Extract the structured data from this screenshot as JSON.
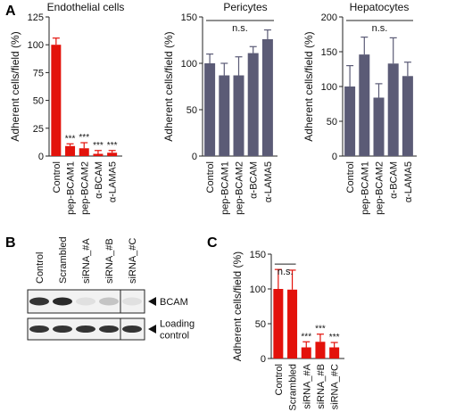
{
  "panel_labels": {
    "a": "A",
    "b": "B",
    "c": "C"
  },
  "colors": {
    "red": "#e3120b",
    "gray": "#5b5b76",
    "axis": "#222222"
  },
  "western_blot": {
    "lanes": [
      "Control",
      "Scrambled",
      "siRNA_#A",
      "siRNA_#B",
      "siRNA_#C"
    ],
    "bands": [
      {
        "label": "BCAM",
        "intensities": [
          0.85,
          0.9,
          0.05,
          0.18,
          0.05
        ]
      },
      {
        "label": "Loading\ncontrol",
        "intensities": [
          0.85,
          0.85,
          0.85,
          0.85,
          0.85
        ]
      }
    ]
  },
  "chart_data": [
    {
      "type": "bar",
      "title": "Endothelial cells",
      "ylabel": "Adherent cells/field (%)",
      "ylim": [
        0,
        125
      ],
      "yticks": [
        0,
        25,
        50,
        75,
        100,
        125
      ],
      "categories": [
        "Control",
        "pep-BCAM1",
        "pep-BCAM2",
        "α-BCAM",
        "α-LAMA5"
      ],
      "values": [
        100,
        9,
        7,
        2,
        3
      ],
      "errors": [
        6,
        2,
        5,
        3,
        2
      ],
      "annotations": [
        "",
        "***",
        "***",
        "***",
        "***"
      ],
      "color": "#e3120b"
    },
    {
      "type": "bar",
      "title": "Pericytes",
      "ylabel": "Adherent cells/field (%)",
      "ylim": [
        0,
        150
      ],
      "yticks": [
        0,
        50,
        100,
        150
      ],
      "categories": [
        "Control",
        "pep-BCAM1",
        "pep-BCAM2",
        "α-BCAM",
        "α-LAMA5"
      ],
      "values": [
        100,
        87,
        87,
        111,
        126
      ],
      "errors": [
        10,
        13,
        20,
        7,
        10
      ],
      "significance": "n.s.",
      "color": "#5b5b76"
    },
    {
      "type": "bar",
      "title": "Hepatocytes",
      "ylabel": "Adherent cells/field (%)",
      "ylim": [
        0,
        200
      ],
      "yticks": [
        0,
        50,
        100,
        150,
        200
      ],
      "categories": [
        "Control",
        "pep-BCAM1",
        "pep-BCAM2",
        "α-BCAM",
        "α-LAMA5"
      ],
      "values": [
        100,
        146,
        84,
        133,
        115
      ],
      "errors": [
        30,
        25,
        20,
        37,
        20
      ],
      "significance": "n.s.",
      "color": "#5b5b76"
    },
    {
      "type": "bar",
      "title": "",
      "ylabel": "Adherent cells/field (%)",
      "ylim": [
        0,
        150
      ],
      "yticks": [
        0,
        50,
        100,
        150
      ],
      "categories": [
        "Control",
        "Scrambled",
        "siRNA_#A",
        "siRNA_#B",
        "siRNA_#C"
      ],
      "values": [
        100,
        99,
        16,
        24,
        16
      ],
      "errors": [
        28,
        28,
        8,
        11,
        7
      ],
      "annotations": [
        "",
        "",
        "***",
        "***",
        "***"
      ],
      "significance": "n.s.",
      "significance_span": [
        0,
        1
      ],
      "color": "#e3120b"
    }
  ]
}
